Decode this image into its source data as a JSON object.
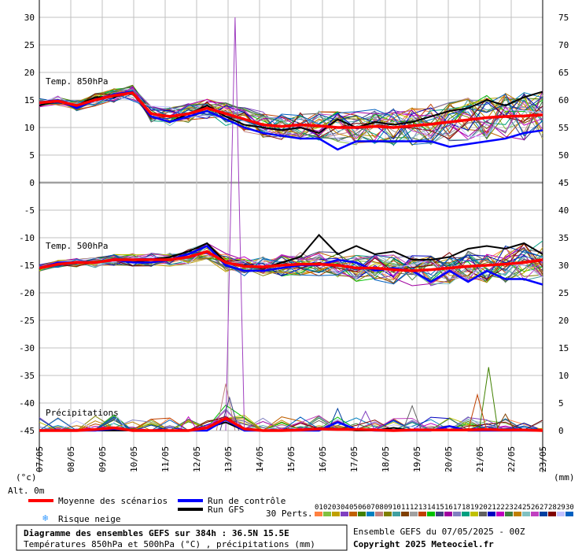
{
  "chart_data": {
    "type": "line",
    "title": "Diagramme des ensembles GEFS sur 384h : 36.5N 15.5E",
    "subtitle": "Températures 850hPa et 500hPa (°C) , précipitations (mm)",
    "run_info": "Ensemble GEFS du 07/05/2025 - 00Z",
    "copyright": "Copyright 2025 Meteociel.fr",
    "left_axis_label": "(°c)",
    "right_axis_label": "(mm)",
    "alt_label": "Alt. 0m",
    "left_ticks": [
      "30",
      "25",
      "20",
      "15",
      "10",
      "5",
      "0",
      "-5",
      "-10",
      "-15",
      "-20",
      "-25",
      "-30",
      "-35",
      "-40",
      "-45"
    ],
    "right_ticks": [
      "75",
      "70",
      "65",
      "60",
      "55",
      "50",
      "45",
      "40",
      "35",
      "30",
      "25",
      "20",
      "15",
      "10",
      "5",
      "0"
    ],
    "x_labels": [
      "07/05",
      "08/05",
      "09/05",
      "10/05",
      "11/05",
      "12/05",
      "13/05",
      "14/05",
      "15/05",
      "16/05",
      "17/05",
      "18/05",
      "19/05",
      "20/05",
      "21/05",
      "22/05",
      "23/05"
    ],
    "panel_labels": {
      "t850": "Temp. 850hPa",
      "t500": "Temp. 500hPa",
      "precip": "Précipitations"
    },
    "legend": {
      "mean": "Moyenne des scénarios",
      "control": "Run de contrôle",
      "gfs": "Run GFS",
      "snow": "Risque neige",
      "perts_label": "30 Perts.",
      "pert_numbers": [
        "01",
        "02",
        "03",
        "04",
        "05",
        "06",
        "07",
        "08",
        "09",
        "10",
        "11",
        "12",
        "13",
        "14",
        "15",
        "16",
        "17",
        "18",
        "19",
        "20",
        "21",
        "22",
        "23",
        "24",
        "25",
        "26",
        "27",
        "28",
        "29",
        "30"
      ]
    },
    "colors": {
      "mean": "#ff0000",
      "control": "#0000ff",
      "gfs": "#000000",
      "grid": "#c0c0c0",
      "perts": [
        "#ff8040",
        "#80c040",
        "#c0a000",
        "#8040c0",
        "#c06000",
        "#408000",
        "#0080c0",
        "#c08080",
        "#808000",
        "#40a0a0",
        "#804000",
        "#a0a0a0",
        "#c04000",
        "#00c000",
        "#404080",
        "#a000a0",
        "#8080c0",
        "#00a080",
        "#c0c000",
        "#606060",
        "#0000c0",
        "#c000c0",
        "#408040",
        "#c08000",
        "#80c0c0",
        "#c040c0",
        "#0040a0",
        "#800000",
        "#c0c0ff",
        "#0060c0"
      ]
    },
    "t850": {
      "mean": [
        14.5,
        14.8,
        14,
        15,
        15.8,
        16.3,
        12.5,
        12,
        12.5,
        13.5,
        12.5,
        11.5,
        10.5,
        10.2,
        10.5,
        10.3,
        10,
        10,
        10.2,
        10,
        10.3,
        10.6,
        11,
        11.4,
        11.8,
        12,
        12.1,
        12.3
      ],
      "control": [
        14.5,
        15,
        13.5,
        15,
        16,
        16.5,
        12,
        11,
        12,
        13,
        11.5,
        10,
        9,
        8.5,
        8,
        8,
        6,
        7.5,
        7.5,
        7.5,
        7.5,
        7.5,
        6.5,
        7,
        7.5,
        8,
        9,
        9.5
      ],
      "gfs": [
        14,
        14.8,
        14,
        15.5,
        15.5,
        16.5,
        12,
        11,
        12.5,
        14,
        12,
        10.5,
        10,
        9.5,
        10,
        9,
        11.5,
        10,
        11,
        10.5,
        11,
        12,
        13,
        13.5,
        15,
        14,
        15.5,
        16.5
      ]
    },
    "t500": {
      "mean": [
        -15.5,
        -14.8,
        -14.5,
        -14.5,
        -14,
        -14,
        -14,
        -14,
        -13.5,
        -12.5,
        -14.5,
        -15.2,
        -15.3,
        -15,
        -14.8,
        -14.8,
        -15,
        -15.5,
        -15.5,
        -15.8,
        -16,
        -15.8,
        -15.5,
        -15.2,
        -15,
        -14.8,
        -14.5,
        -14
      ],
      "control": [
        -15.5,
        -14.5,
        -14.5,
        -14.5,
        -14,
        -14.5,
        -14.5,
        -14,
        -13,
        -11.5,
        -15,
        -16,
        -16,
        -15.5,
        -15,
        -15,
        -14,
        -14.5,
        -16,
        -15.5,
        -16,
        -18,
        -16,
        -18,
        -16,
        -17.5,
        -17.5,
        -18.5
      ],
      "gfs": [
        -15.5,
        -14.8,
        -14.5,
        -14.5,
        -14,
        -14.5,
        -14,
        -13.5,
        -12.5,
        -11,
        -14.5,
        -15,
        -15.5,
        -14.5,
        -13.5,
        -9.5,
        -13,
        -11.5,
        -13,
        -12.5,
        -14,
        -14,
        -13.5,
        -12,
        -11.5,
        -12,
        -11,
        -13
      ]
    },
    "precip": {
      "mean": [
        0,
        0,
        0,
        0.2,
        0.5,
        0,
        0,
        0,
        0,
        0.5,
        2.2,
        0.3,
        0,
        0,
        0.1,
        0.3,
        0.2,
        0.2,
        0.1,
        0,
        0.1,
        0.1,
        0.1,
        0.1,
        0.2,
        0.1,
        0.1,
        0
      ],
      "control": [
        0,
        0,
        0,
        0,
        0.3,
        0,
        0,
        0,
        0,
        0,
        2,
        0,
        0,
        0,
        0,
        0,
        1.5,
        0.2,
        0,
        0,
        0,
        0,
        0.8,
        0,
        0,
        0,
        0,
        0
      ],
      "gfs": [
        0,
        0,
        0,
        0,
        0,
        0,
        0,
        0,
        0,
        0.5,
        1.5,
        0,
        0,
        0,
        0,
        0.5,
        0.3,
        0,
        0,
        0.5,
        0,
        0,
        0,
        0,
        0,
        0,
        0,
        0
      ],
      "peaks": [
        {
          "t": 10.5,
          "v": 75
        },
        {
          "t": 10,
          "v": 8.5
        },
        {
          "t": 10.2,
          "v": 6
        },
        {
          "t": 8,
          "v": 2.5
        },
        {
          "t": 4.2,
          "v": 2.5
        },
        {
          "t": 24.1,
          "v": 11.5
        },
        {
          "t": 23.5,
          "v": 6.5
        },
        {
          "t": 20,
          "v": 4.5
        },
        {
          "t": 16,
          "v": 4
        },
        {
          "t": 17.5,
          "v": 3.5
        },
        {
          "t": 25,
          "v": 3
        }
      ]
    }
  }
}
